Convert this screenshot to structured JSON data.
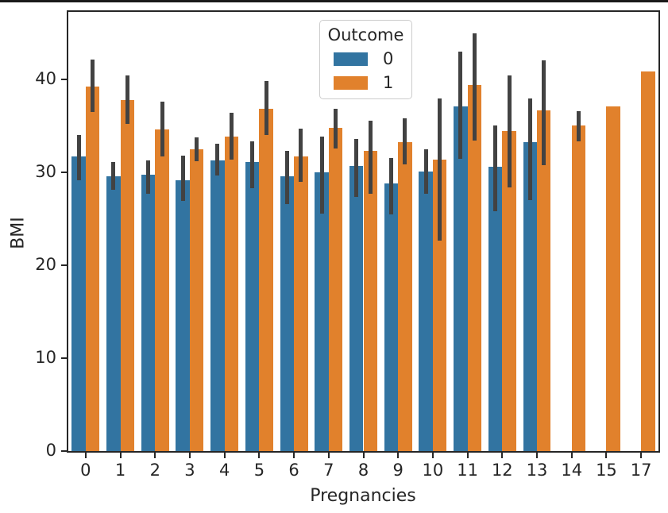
{
  "window": {
    "top_border_color": "#1a1a1a",
    "background_color": "#ffffff"
  },
  "chart_data": {
    "type": "bar",
    "title": "",
    "xlabel": "Pregnancies",
    "ylabel": "BMI",
    "ylim": [
      0,
      47.3
    ],
    "yticks": [
      "0",
      "10",
      "20",
      "30",
      "40"
    ],
    "ytick_values": [
      0,
      10,
      20,
      30,
      40
    ],
    "grid": false,
    "categories": [
      "0",
      "1",
      "2",
      "3",
      "4",
      "5",
      "6",
      "7",
      "8",
      "9",
      "10",
      "11",
      "12",
      "13",
      "14",
      "15",
      "17"
    ],
    "legend": {
      "title": "Outcome",
      "position": "upper center",
      "entries": [
        {
          "label": "0",
          "color": "#3274a1"
        },
        {
          "label": "1",
          "color": "#e1812c"
        }
      ]
    },
    "error_bar_color": "#424242",
    "series": [
      {
        "name": "0",
        "color": "#3274a1",
        "values": [
          31.7,
          29.6,
          29.8,
          29.2,
          31.3,
          31.1,
          29.6,
          30.0,
          30.7,
          28.8,
          30.1,
          37.1,
          30.6,
          33.3,
          null,
          null,
          null
        ],
        "ci": [
          [
            29.2,
            34.0
          ],
          [
            28.1,
            31.1
          ],
          [
            27.7,
            31.3
          ],
          [
            26.9,
            31.8
          ],
          [
            29.7,
            33.1
          ],
          [
            28.3,
            33.4
          ],
          [
            26.6,
            32.3
          ],
          [
            25.6,
            33.9
          ],
          [
            27.4,
            33.6
          ],
          [
            25.5,
            31.6
          ],
          [
            27.7,
            32.5
          ],
          [
            31.5,
            43.0
          ],
          [
            25.8,
            35.1
          ],
          [
            27.0,
            38.0
          ],
          null,
          null,
          null
        ]
      },
      {
        "name": "1",
        "color": "#e1812c",
        "values": [
          39.3,
          37.8,
          34.6,
          32.5,
          33.9,
          36.9,
          31.7,
          34.8,
          32.3,
          33.3,
          31.4,
          39.4,
          34.5,
          36.7,
          35.1,
          37.1,
          40.9
        ],
        "ci": [
          [
            36.5,
            42.2
          ],
          [
            35.2,
            40.5
          ],
          [
            31.7,
            37.6
          ],
          [
            31.2,
            33.8
          ],
          [
            31.4,
            36.4
          ],
          [
            34.0,
            39.9
          ],
          [
            29.0,
            34.7
          ],
          [
            32.6,
            36.9
          ],
          [
            27.7,
            35.6
          ],
          [
            30.9,
            35.8
          ],
          [
            22.7,
            38.0
          ],
          [
            33.4,
            45.0
          ],
          [
            28.4,
            40.5
          ],
          [
            30.8,
            42.1
          ],
          [
            33.4,
            36.6
          ],
          null,
          null
        ]
      }
    ]
  }
}
